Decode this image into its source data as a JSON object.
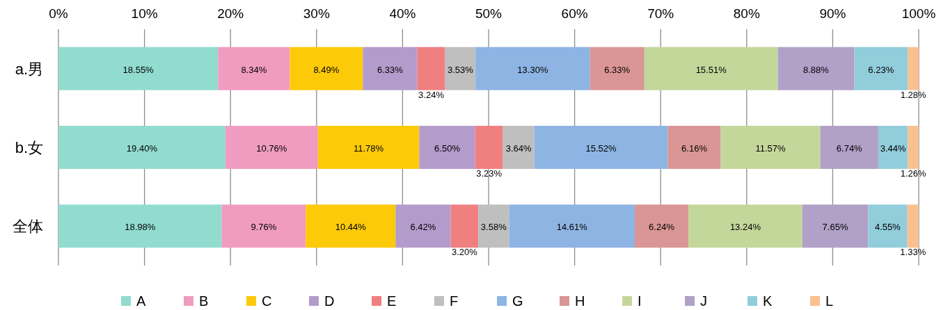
{
  "chart_data": {
    "type": "bar",
    "orientation": "horizontal",
    "stacked": true,
    "categories": [
      "a.男",
      "b.女",
      "全体"
    ],
    "xlim": [
      0,
      100
    ],
    "xticks": [
      {
        "value": 0,
        "label": "0%"
      },
      {
        "value": 10,
        "label": "10%"
      },
      {
        "value": 20,
        "label": "20%"
      },
      {
        "value": 30,
        "label": "30%"
      },
      {
        "value": 40,
        "label": "40%"
      },
      {
        "value": 50,
        "label": "50%"
      },
      {
        "value": 60,
        "label": "60%"
      },
      {
        "value": 70,
        "label": "70%"
      },
      {
        "value": 80,
        "label": "80%"
      },
      {
        "value": 90,
        "label": "90%"
      },
      {
        "value": 100,
        "label": "100%"
      }
    ],
    "grid": "x",
    "legend": "bottom",
    "series": [
      {
        "name": "A",
        "color": "#91dccf",
        "values": [
          18.55,
          19.4,
          18.98
        ],
        "value_labels": [
          "18.55%",
          "19.40%",
          "18.98%"
        ]
      },
      {
        "name": "B",
        "color": "#f09cc0",
        "values": [
          8.34,
          10.76,
          9.76
        ],
        "value_labels": [
          "8.34%",
          "10.76%",
          "9.76%"
        ]
      },
      {
        "name": "C",
        "color": "#fdca0a",
        "values": [
          8.49,
          11.78,
          10.44
        ],
        "value_labels": [
          "8.49%",
          "11.78%",
          "10.44%"
        ]
      },
      {
        "name": "D",
        "color": "#b39ccb",
        "values": [
          6.33,
          6.5,
          6.42
        ],
        "value_labels": [
          "6.33%",
          "6.50%",
          "6.42%"
        ]
      },
      {
        "name": "E",
        "color": "#f07f80",
        "values": [
          3.24,
          3.23,
          3.2
        ],
        "value_labels": [
          "3.24%",
          "3.23%",
          "3.20%"
        ]
      },
      {
        "name": "F",
        "color": "#bfbfbf",
        "values": [
          3.53,
          3.64,
          3.58
        ],
        "value_labels": [
          "3.53%",
          "3.64%",
          "3.58%"
        ]
      },
      {
        "name": "G",
        "color": "#8eb4e3",
        "values": [
          13.3,
          15.52,
          14.61
        ],
        "value_labels": [
          "13.30%",
          "15.52%",
          "14.61%"
        ]
      },
      {
        "name": "H",
        "color": "#da9694",
        "values": [
          6.33,
          6.16,
          6.24
        ],
        "value_labels": [
          "6.33%",
          "6.16%",
          "6.24%"
        ]
      },
      {
        "name": "I",
        "color": "#c4d79b",
        "values": [
          15.51,
          11.57,
          13.24
        ],
        "value_labels": [
          "15.51%",
          "11.57%",
          "13.24%"
        ]
      },
      {
        "name": "J",
        "color": "#b1a0c7",
        "values": [
          8.88,
          6.74,
          7.65
        ],
        "value_labels": [
          "8.88%",
          "6.74%",
          "7.65%"
        ]
      },
      {
        "name": "K",
        "color": "#92cddc",
        "values": [
          6.23,
          3.44,
          4.55
        ],
        "value_labels": [
          "6.23%",
          "3.44%",
          "4.55%"
        ]
      },
      {
        "name": "L",
        "color": "#fac090",
        "values": [
          1.28,
          1.26,
          1.33
        ],
        "value_labels": [
          "1.28%",
          "1.26%",
          "1.33%"
        ]
      }
    ]
  }
}
